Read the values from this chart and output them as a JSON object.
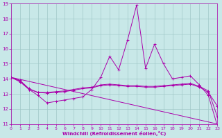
{
  "background_color": "#c8e8e8",
  "grid_color": "#a0c8c8",
  "line_color": "#aa00aa",
  "xlabel": "Windchill (Refroidissement éolien,°C)",
  "xlim": [
    0,
    23
  ],
  "ylim": [
    11,
    19
  ],
  "yticks": [
    11,
    12,
    13,
    14,
    15,
    16,
    17,
    18,
    19
  ],
  "xticks": [
    0,
    1,
    2,
    3,
    4,
    5,
    6,
    7,
    8,
    9,
    10,
    11,
    12,
    13,
    14,
    15,
    16,
    17,
    18,
    19,
    20,
    21,
    22,
    23
  ],
  "series": [
    {
      "x": [
        0,
        1,
        2,
        3,
        4,
        5,
        6,
        7,
        8,
        9,
        10,
        11,
        12,
        13,
        14,
        15,
        16,
        17,
        18,
        19,
        20,
        21,
        22,
        23
      ],
      "y": [
        14.1,
        13.8,
        13.3,
        12.9,
        12.4,
        12.5,
        12.6,
        12.7,
        12.8,
        13.3,
        14.1,
        15.5,
        14.6,
        16.6,
        18.9,
        14.7,
        16.3,
        15.0,
        14.0,
        14.1,
        14.2,
        13.6,
        12.9,
        10.9
      ],
      "has_markers": true
    },
    {
      "x": [
        0,
        1,
        2,
        3,
        4,
        5,
        6,
        7,
        8,
        9,
        10,
        11,
        12,
        13,
        14,
        15,
        16,
        17,
        18,
        19,
        20,
        21,
        22,
        23
      ],
      "y": [
        14.1,
        13.85,
        13.3,
        13.1,
        13.1,
        13.15,
        13.2,
        13.3,
        13.4,
        13.45,
        13.6,
        13.65,
        13.6,
        13.55,
        13.55,
        13.5,
        13.5,
        13.55,
        13.6,
        13.65,
        13.7,
        13.5,
        13.2,
        11.5
      ],
      "has_markers": true
    },
    {
      "x": [
        0,
        1,
        2,
        3,
        4,
        5,
        6,
        7,
        8,
        9,
        10,
        11,
        12,
        13,
        14,
        15,
        16,
        17,
        18,
        19,
        20,
        21,
        22,
        23
      ],
      "y": [
        14.1,
        13.9,
        13.35,
        13.1,
        13.05,
        13.1,
        13.15,
        13.25,
        13.35,
        13.4,
        13.55,
        13.6,
        13.55,
        13.5,
        13.5,
        13.45,
        13.45,
        13.5,
        13.55,
        13.6,
        13.65,
        13.45,
        13.1,
        12.2
      ],
      "has_markers": true
    },
    {
      "x": [
        0,
        23
      ],
      "y": [
        14.1,
        11.0
      ],
      "has_markers": false
    }
  ]
}
